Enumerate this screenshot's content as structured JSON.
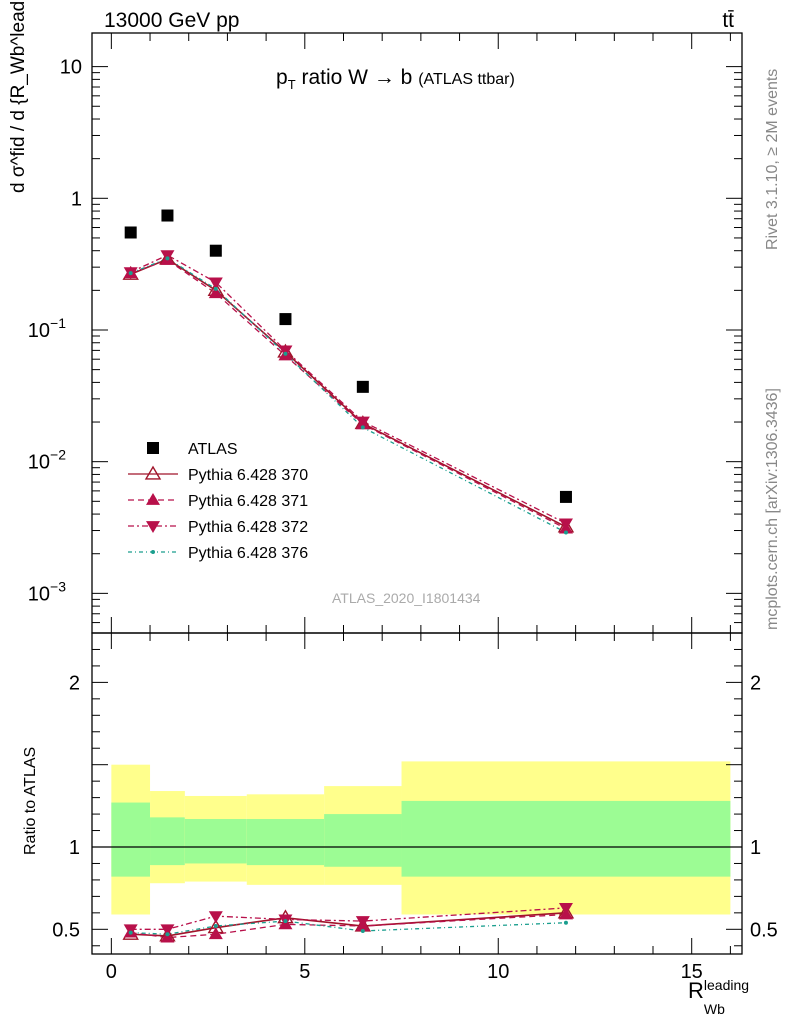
{
  "header": {
    "energy_label": "13000 GeV pp",
    "process_label": "tt̄"
  },
  "side_labels": {
    "rivet": "Rivet 3.1.10, ≥ 2M events",
    "mcplots": "mcplots.cern.ch [arXiv:1306.3436]"
  },
  "plot_title": {
    "main": "p",
    "sub": "T",
    "rest": " ratio W → b",
    "tag": "(ATLAS ttbar)"
  },
  "watermark": "ATLAS_2020_I1801434",
  "y_axis_label": "d σ^fid / d {R_Wb^leading} [pb]",
  "ratio_y_label": "Ratio to ATLAS",
  "x_axis_label": {
    "main": "R",
    "sup": "leading",
    "sub": "Wb"
  },
  "legend": [
    {
      "label": "ATLAS",
      "color": "#000000",
      "marker": "square"
    },
    {
      "label": "Pythia 6.428 370",
      "color": "#a0142a",
      "marker": "open-triangle-up"
    },
    {
      "label": "Pythia 6.428 371",
      "color": "#b8104a",
      "marker": "triangle-up"
    },
    {
      "label": "Pythia 6.428 372",
      "color": "#b8104a",
      "marker": "triangle-down"
    },
    {
      "label": "Pythia 6.428 376",
      "color": "#1a9e8e",
      "marker": "dot"
    }
  ],
  "chart_data": {
    "type": "scatter",
    "x_range": [
      -0.5,
      16.3
    ],
    "main_ylim": [
      0.0005,
      18
    ],
    "main_log_y": true,
    "main_y_ticks": [
      {
        "v": 10,
        "base": "10",
        "exp": ""
      },
      {
        "v": 1,
        "base": "1",
        "exp": ""
      },
      {
        "v": 0.1,
        "base": "10",
        "exp": "−1"
      },
      {
        "v": 0.01,
        "base": "10",
        "exp": "−2"
      },
      {
        "v": 0.001,
        "base": "10",
        "exp": "−3"
      }
    ],
    "ratio_ylim": [
      0.35,
      2.3
    ],
    "ratio_y_ticks": [
      "0.5",
      "1",
      "2"
    ],
    "x_ticks": [
      "0",
      "5",
      "10",
      "15"
    ],
    "bins": [
      [
        0,
        1
      ],
      [
        1,
        1.9
      ],
      [
        1.9,
        3.5
      ],
      [
        3.5,
        5.5
      ],
      [
        5.5,
        7.5
      ],
      [
        7.5,
        16
      ]
    ],
    "x": [
      0.5,
      1.45,
      2.7,
      4.5,
      6.5,
      11.75
    ],
    "atlas": [
      0.55,
      0.74,
      0.4,
      0.121,
      0.037,
      0.0054
    ],
    "band_yellow": [
      [
        0.59,
        1.5
      ],
      [
        0.78,
        1.34
      ],
      [
        0.79,
        1.31
      ],
      [
        0.77,
        1.32
      ],
      [
        0.77,
        1.37
      ],
      [
        0.59,
        1.52
      ]
    ],
    "band_green": [
      [
        0.82,
        1.27
      ],
      [
        0.89,
        1.18
      ],
      [
        0.9,
        1.17
      ],
      [
        0.89,
        1.17
      ],
      [
        0.88,
        1.2
      ],
      [
        0.82,
        1.28
      ]
    ],
    "series": [
      {
        "name": "Pythia 6.428 370",
        "values": [
          0.265,
          0.345,
          0.2,
          0.068,
          0.0195,
          0.0032
        ],
        "ratio": [
          0.47,
          0.46,
          0.51,
          0.57,
          0.52,
          0.6
        ]
      },
      {
        "name": "Pythia 6.428 371",
        "values": [
          0.27,
          0.34,
          0.19,
          0.064,
          0.0192,
          0.0031
        ],
        "ratio": [
          0.48,
          0.45,
          0.47,
          0.53,
          0.52,
          0.59
        ]
      },
      {
        "name": "Pythia 6.428 372",
        "values": [
          0.275,
          0.37,
          0.23,
          0.07,
          0.0202,
          0.0034
        ],
        "ratio": [
          0.5,
          0.5,
          0.58,
          0.56,
          0.55,
          0.63
        ]
      },
      {
        "name": "Pythia 6.428 376",
        "values": [
          0.27,
          0.35,
          0.205,
          0.066,
          0.0182,
          0.0029
        ],
        "ratio": [
          0.48,
          0.47,
          0.52,
          0.55,
          0.49,
          0.54
        ]
      }
    ]
  }
}
